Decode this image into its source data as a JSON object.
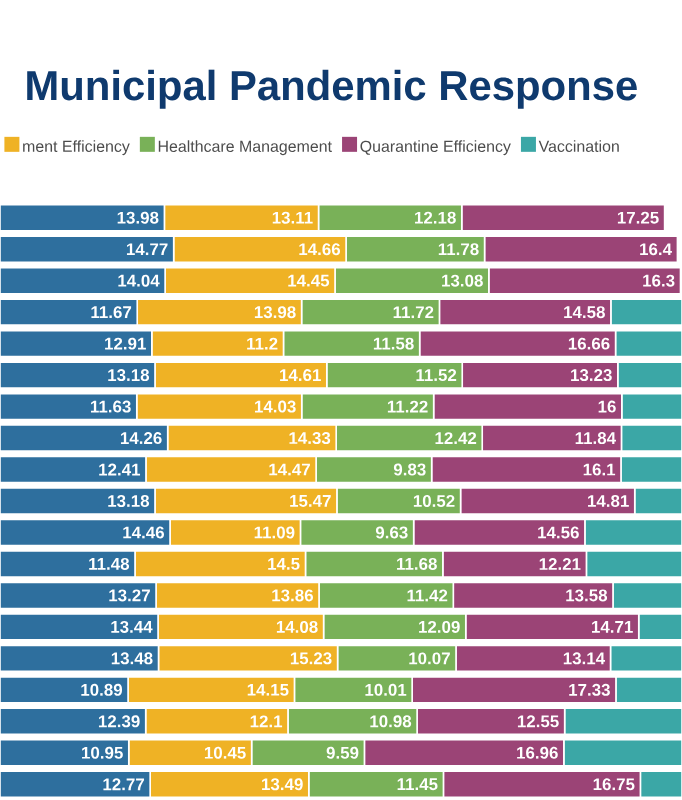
{
  "chart_data": {
    "type": "bar",
    "orientation": "horizontal",
    "stacked": true,
    "title": "Municipal Pandemic Response",
    "legend": "top",
    "categories": [
      null,
      null,
      null,
      null,
      null,
      null,
      null,
      null,
      null,
      null,
      null,
      null,
      null,
      null,
      null,
      null,
      null,
      null,
      null
    ],
    "series": [
      {
        "color": "#2e6f9e",
        "values": [
          13.98,
          14.77,
          14.04,
          11.67,
          12.91,
          13.18,
          11.63,
          14.26,
          12.41,
          13.18,
          14.46,
          11.48,
          13.27,
          13.44,
          13.48,
          10.89,
          12.39,
          10.95,
          12.77
        ],
        "value_labels": [
          "13.98",
          "14.77",
          "14.04",
          "11.67",
          "12.91",
          "13.18",
          "11.63",
          "14.26",
          "12.41",
          "13.18",
          "14.46",
          "11.48",
          "13.27",
          "13.44",
          "13.48",
          "10.89",
          "12.39",
          "10.95",
          "12.77"
        ]
      },
      {
        "name": "ment Efficiency",
        "color": "#efb225",
        "values": [
          13.11,
          14.66,
          14.45,
          13.98,
          11.2,
          14.61,
          14.03,
          14.33,
          14.47,
          15.47,
          11.09,
          14.5,
          13.86,
          14.08,
          15.23,
          14.15,
          12.1,
          10.45,
          13.49
        ],
        "value_labels": [
          "13.11",
          "14.66",
          "14.45",
          "13.98",
          "11.2",
          "14.61",
          "14.03",
          "14.33",
          "14.47",
          "15.47",
          "11.09",
          "14.5",
          "13.86",
          "14.08",
          "15.23",
          "14.15",
          "12.1",
          "10.45",
          "13.49"
        ]
      },
      {
        "name": "Healthcare Management",
        "color": "#79b158",
        "values": [
          12.18,
          11.78,
          13.08,
          11.72,
          11.58,
          11.52,
          11.22,
          12.42,
          9.83,
          10.52,
          9.63,
          11.68,
          11.42,
          12.09,
          10.07,
          10.01,
          10.98,
          9.59,
          11.45
        ],
        "value_labels": [
          "12.18",
          "11.78",
          "13.08",
          "11.72",
          "11.58",
          "11.52",
          "11.22",
          "12.42",
          "9.83",
          "10.52",
          "9.63",
          "11.68",
          "11.42",
          "12.09",
          "10.07",
          "10.01",
          "10.98",
          "9.59",
          "11.45"
        ]
      },
      {
        "name": "Quarantine Efficiency",
        "color": "#9b4476",
        "values": [
          17.25,
          16.4,
          16.3,
          14.58,
          16.66,
          13.23,
          16,
          11.84,
          16.1,
          14.81,
          14.56,
          12.21,
          13.58,
          14.71,
          13.14,
          17.33,
          12.55,
          16.96,
          16.75
        ],
        "value_labels": [
          "17.25",
          "16.4",
          "16.3",
          "14.58",
          "16.66",
          "13.23",
          "16",
          "11.84",
          "16.1",
          "14.81",
          "14.56",
          "12.21",
          "13.58",
          "14.71",
          "13.14",
          "17.33",
          "12.55",
          "16.96",
          "16.75"
        ]
      },
      {
        "name": "Vaccination",
        "color": "#3ba7a6",
        "values": [
          null,
          null,
          null,
          6.05,
          5.65,
          5.46,
          5.12,
          5.15,
          5.19,
          4.02,
          8.26,
          8.13,
          5.87,
          3.68,
          6.08,
          5.62,
          9.98,
          10.05,
          3.54
        ]
      }
    ]
  }
}
